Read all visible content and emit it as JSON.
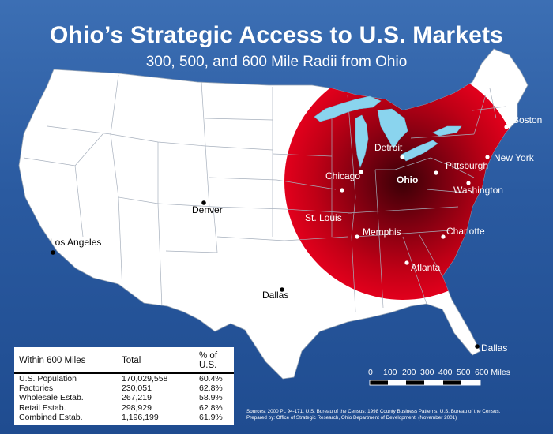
{
  "title": "Ohio’s Strategic Access to U.S. Markets",
  "subtitle": "300, 500, and 600 Mile Radii from Ohio",
  "colors": {
    "background": "#2a5aa0",
    "radius_dark": "#4a0008",
    "radius_light": "#e0001a",
    "land": "#ffffff",
    "lakes": "#8ad4ee"
  },
  "cities": [
    {
      "name": "Boston"
    },
    {
      "name": "New York"
    },
    {
      "name": "Detroit"
    },
    {
      "name": "Pittsburgh"
    },
    {
      "name": "Chicago"
    },
    {
      "name": "Ohio"
    },
    {
      "name": "Washington"
    },
    {
      "name": "Denver"
    },
    {
      "name": "St. Louis"
    },
    {
      "name": "Memphis"
    },
    {
      "name": "Charlotte"
    },
    {
      "name": "Los Angeles"
    },
    {
      "name": "Atlanta"
    },
    {
      "name": "Dallas"
    },
    {
      "name": "Dallas"
    }
  ],
  "table": {
    "headers": [
      "Within 600 Miles",
      "Total",
      "% of U.S."
    ],
    "rows": [
      {
        "label": "U.S. Population",
        "total": "170,029,558",
        "pct": "60.4%"
      },
      {
        "label": "Factories",
        "total": "230,051",
        "pct": "62.8%"
      },
      {
        "label": "Wholesale Estab.",
        "total": "267,219",
        "pct": "58.9%"
      },
      {
        "label": "Retail Estab.",
        "total": "298,929",
        "pct": "62.8%"
      },
      {
        "label": "Combined Estab.",
        "total": "1,196,199",
        "pct": "61.9%"
      }
    ]
  },
  "scale": {
    "labels": [
      "0",
      "100",
      "200",
      "300",
      "400",
      "500",
      "600 Miles"
    ]
  },
  "sources": [
    "Sources: 2000 PL 94-171, U.S. Bureau of the Census; 1998 County Business Patterns, U.S. Bureau of the Census.",
    "Prepared by: Office of Strategic Research, Ohio Department of Development. (November 2001)"
  ]
}
